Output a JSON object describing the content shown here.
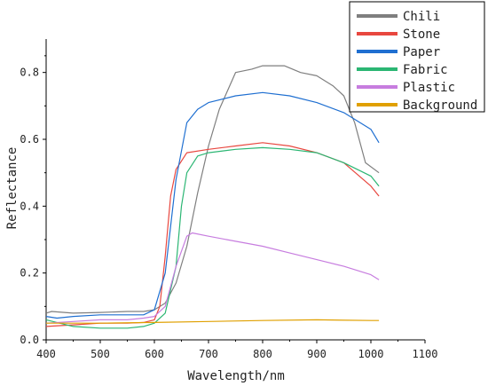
{
  "chart_data": {
    "type": "line",
    "xlabel": "Wavelength/nm",
    "ylabel": "Reflectance",
    "xlim": [
      400,
      1100
    ],
    "ylim": [
      0,
      0.9
    ],
    "xticks": [
      400,
      500,
      600,
      700,
      800,
      900,
      1000,
      1100
    ],
    "yticks": [
      0.0,
      0.2,
      0.4,
      0.6,
      0.8
    ],
    "ytick_labels": [
      "0.0",
      "0.2",
      "0.4",
      "0.6",
      "0.8"
    ],
    "legend_position": "top-right",
    "grid": false,
    "series": [
      {
        "name": "Chili",
        "color": "#7f7f7f",
        "x": [
          400,
          410,
          450,
          500,
          550,
          580,
          600,
          620,
          640,
          660,
          670,
          680,
          700,
          720,
          750,
          780,
          800,
          840,
          870,
          900,
          930,
          950,
          970,
          990,
          1015
        ],
        "y": [
          0.08,
          0.085,
          0.08,
          0.082,
          0.085,
          0.085,
          0.09,
          0.11,
          0.17,
          0.28,
          0.36,
          0.44,
          0.58,
          0.69,
          0.8,
          0.81,
          0.82,
          0.82,
          0.8,
          0.79,
          0.76,
          0.73,
          0.65,
          0.53,
          0.5
        ]
      },
      {
        "name": "Stone",
        "color": "#e8473f",
        "x": [
          400,
          450,
          500,
          550,
          580,
          600,
          610,
          620,
          630,
          640,
          660,
          700,
          750,
          800,
          850,
          900,
          950,
          1000,
          1015
        ],
        "y": [
          0.04,
          0.045,
          0.05,
          0.05,
          0.052,
          0.06,
          0.1,
          0.25,
          0.43,
          0.51,
          0.56,
          0.57,
          0.58,
          0.59,
          0.58,
          0.56,
          0.53,
          0.46,
          0.43
        ]
      },
      {
        "name": "Paper",
        "color": "#1f6fd1",
        "x": [
          400,
          420,
          450,
          500,
          550,
          580,
          600,
          620,
          640,
          660,
          680,
          700,
          750,
          800,
          850,
          900,
          950,
          1000,
          1015
        ],
        "y": [
          0.07,
          0.065,
          0.07,
          0.075,
          0.075,
          0.075,
          0.09,
          0.2,
          0.48,
          0.65,
          0.69,
          0.71,
          0.73,
          0.74,
          0.73,
          0.71,
          0.68,
          0.63,
          0.59
        ]
      },
      {
        "name": "Fabric",
        "color": "#2bb673",
        "x": [
          400,
          450,
          500,
          550,
          580,
          600,
          620,
          640,
          650,
          660,
          680,
          700,
          750,
          800,
          850,
          900,
          950,
          1000,
          1015
        ],
        "y": [
          0.06,
          0.04,
          0.035,
          0.035,
          0.04,
          0.05,
          0.08,
          0.22,
          0.4,
          0.5,
          0.55,
          0.56,
          0.57,
          0.575,
          0.57,
          0.56,
          0.53,
          0.49,
          0.46
        ]
      },
      {
        "name": "Plastic",
        "color": "#c77ddf",
        "x": [
          400,
          450,
          500,
          550,
          580,
          600,
          620,
          640,
          660,
          670,
          700,
          750,
          800,
          850,
          900,
          950,
          1000,
          1015
        ],
        "y": [
          0.05,
          0.055,
          0.06,
          0.06,
          0.065,
          0.07,
          0.1,
          0.22,
          0.31,
          0.32,
          0.31,
          0.295,
          0.28,
          0.26,
          0.24,
          0.22,
          0.195,
          0.18
        ]
      },
      {
        "name": "Background",
        "color": "#e0a000",
        "x": [
          400,
          500,
          600,
          700,
          800,
          900,
          1000,
          1015
        ],
        "y": [
          0.05,
          0.05,
          0.052,
          0.055,
          0.058,
          0.06,
          0.058,
          0.058
        ]
      }
    ]
  }
}
